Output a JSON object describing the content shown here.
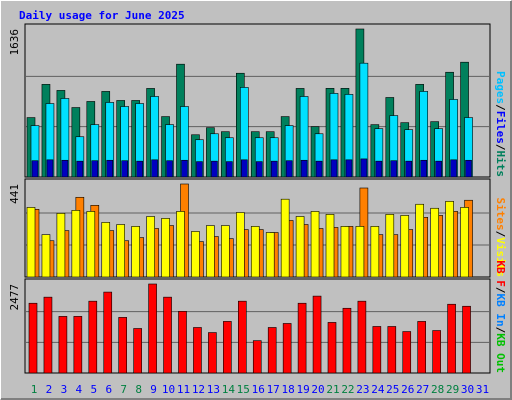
{
  "title": "Daily usage for June 2025",
  "legend_separator": "/",
  "category_colors": [
    "#008040",
    "#0000ff",
    "#0000ff",
    "#0000ff",
    "#0000ff",
    "#0000ff",
    "#008040",
    "#008040",
    "#0000ff",
    "#0000ff",
    "#0000ff",
    "#0000ff",
    "#0000ff",
    "#008040",
    "#008040",
    "#0000ff",
    "#0000ff",
    "#0000ff",
    "#0000ff",
    "#0000ff",
    "#008040",
    "#008040",
    "#0000ff",
    "#0000ff",
    "#0000ff",
    "#0000ff",
    "#0000ff",
    "#008040",
    "#008040",
    "#0000ff",
    "#0000ff"
  ],
  "chart_data": [
    {
      "type": "bar",
      "categories": [
        "1",
        "2",
        "3",
        "4",
        "5",
        "6",
        "7",
        "8",
        "9",
        "10",
        "11",
        "12",
        "13",
        "14",
        "15",
        "16",
        "17",
        "18",
        "19",
        "20",
        "21",
        "22",
        "23",
        "24",
        "25",
        "26",
        "27",
        "28",
        "29",
        "30",
        "31"
      ],
      "ylim": [
        0,
        1636
      ],
      "yticks": [
        1636
      ],
      "series": [
        {
          "name": "Pages",
          "color": "#0000c0",
          "label_color": "#00c0ff",
          "values": [
            180,
            190,
            185,
            175,
            180,
            185,
            180,
            175,
            190,
            180,
            185,
            170,
            175,
            170,
            190,
            170,
            175,
            180,
            185,
            175,
            190,
            190,
            200,
            175,
            180,
            175,
            185,
            175,
            190,
            185,
            0
          ]
        },
        {
          "name": "Files",
          "color": "#00e0ff",
          "label_color": "#0000ff",
          "values": [
            568,
            812,
            868,
            445,
            579,
            824,
            779,
            812,
            890,
            579,
            779,
            412,
            478,
            434,
            990,
            434,
            434,
            568,
            890,
            478,
            924,
            913,
            1258,
            534,
            679,
            523,
            946,
            534,
            857,
            657,
            0
          ]
        },
        {
          "name": "Hits",
          "color": "#00805c",
          "label_color": "#00805c",
          "values": [
            657,
            1024,
            957,
            768,
            835,
            946,
            846,
            846,
            979,
            668,
            1247,
            467,
            545,
            501,
            1147,
            501,
            501,
            668,
            979,
            557,
            980,
            980,
            1636,
            579,
            879,
            601,
            1024,
            612,
            1158,
            1269,
            0
          ]
        }
      ]
    },
    {
      "type": "bar",
      "ylim": [
        0,
        441
      ],
      "yticks": [
        441
      ],
      "series": [
        {
          "name": "Sites",
          "color": "#ff8000",
          "label_color": "#ff8000",
          "values": [
            321,
            172,
            220,
            378,
            340,
            220,
            172,
            187,
            230,
            244,
            441,
            168,
            192,
            182,
            225,
            225,
            211,
            268,
            249,
            230,
            235,
            240,
            422,
            201,
            201,
            225,
            283,
            292,
            311,
            364,
            0
          ]
        },
        {
          "name": "Visits",
          "color": "#ffff00",
          "label_color": "#ffff00",
          "values": [
            330,
            201,
            302,
            316,
            311,
            259,
            249,
            240,
            287,
            278,
            311,
            216,
            244,
            244,
            306,
            240,
            211,
            369,
            287,
            311,
            297,
            240,
            240,
            240,
            297,
            292,
            345,
            326,
            359,
            330,
            0
          ]
        }
      ]
    },
    {
      "type": "bar",
      "ylim": [
        0,
        2477
      ],
      "yticks": [
        2477
      ],
      "series": [
        {
          "name": "KB F",
          "color": "#ff0000",
          "label_color": "#ff0000",
          "values": [
            1942,
            2111,
            1576,
            1576,
            1999,
            2252,
            1548,
            1239,
            2477,
            2111,
            1717,
            1267,
            1126,
            1436,
            1999,
            901,
            1267,
            1379,
            1942,
            2140,
            1408,
            1802,
            1999,
            1295,
            1295,
            1154,
            1436,
            1182,
            1914,
            1858,
            0
          ]
        },
        {
          "name": "KB In",
          "color": "#0080ff",
          "label_color": "#0080ff",
          "values": [
            0,
            0,
            0,
            0,
            0,
            0,
            0,
            0,
            0,
            0,
            0,
            0,
            0,
            0,
            0,
            0,
            0,
            0,
            0,
            0,
            0,
            0,
            0,
            0,
            0,
            0,
            0,
            0,
            0,
            0,
            0
          ]
        },
        {
          "name": "KB Out",
          "color": "#00c000",
          "label_color": "#00c000",
          "values": [
            0,
            0,
            0,
            0,
            0,
            0,
            0,
            0,
            0,
            0,
            0,
            0,
            0,
            0,
            0,
            0,
            0,
            0,
            0,
            0,
            0,
            0,
            0,
            0,
            0,
            0,
            0,
            0,
            0,
            0,
            0
          ]
        }
      ]
    }
  ]
}
